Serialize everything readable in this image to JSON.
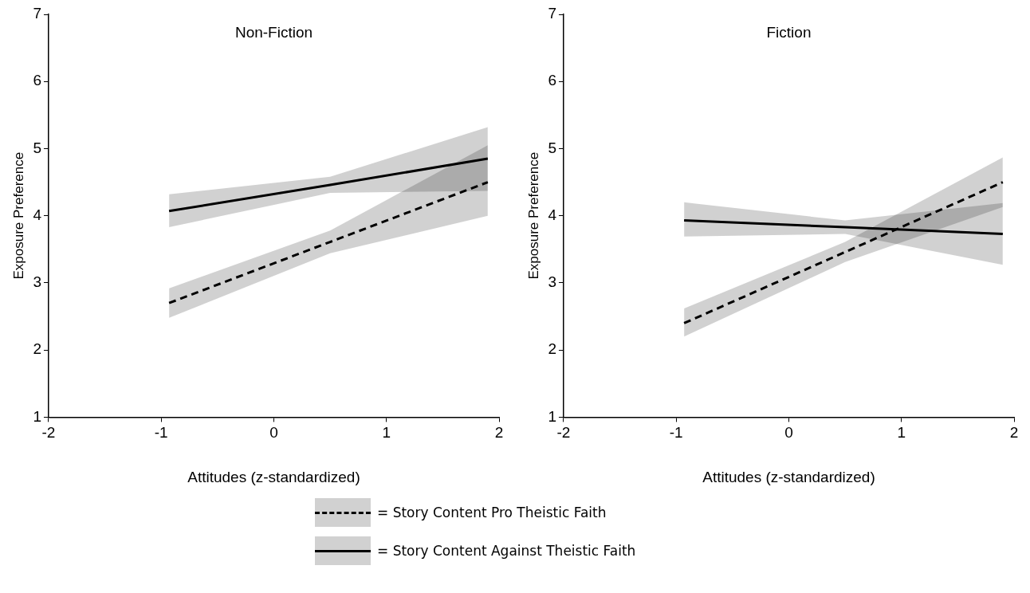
{
  "chart_data": [
    {
      "type": "line",
      "title": "Non-Fiction",
      "xlabel": "Attitudes (z-standardized)",
      "ylabel": "Exposure Preference",
      "xlim": [
        -2,
        2
      ],
      "xticks": [
        -2,
        -1,
        0,
        1,
        2
      ],
      "ylim": [
        1,
        7
      ],
      "yticks": [
        1,
        2,
        3,
        4,
        5,
        6,
        7
      ],
      "grid": false,
      "legend": "bottom",
      "marker": "none",
      "series": [
        {
          "name": "= Story Content Pro Theistic Faith",
          "color": "#000000",
          "line_style": "dashed",
          "x": [
            -0.93,
            0.5,
            1.9
          ],
          "values": [
            2.7,
            3.61,
            4.5
          ],
          "lower": [
            2.48,
            3.44,
            4.0
          ],
          "upper": [
            2.92,
            3.78,
            5.05
          ]
        },
        {
          "name": "= Story Content Against Theistic Faith",
          "color": "#000000",
          "line_style": "solid",
          "x": [
            -0.93,
            0.5,
            1.9
          ],
          "values": [
            4.07,
            4.46,
            4.85
          ],
          "lower": [
            3.83,
            4.34,
            4.37
          ],
          "upper": [
            4.32,
            4.58,
            5.32
          ]
        }
      ]
    },
    {
      "type": "line",
      "title": "Fiction",
      "xlabel": "Attitudes (z-standardized)",
      "ylabel": "Exposure Preference",
      "xlim": [
        -2,
        2
      ],
      "xticks": [
        -2,
        -1,
        0,
        1,
        2
      ],
      "ylim": [
        1,
        7
      ],
      "yticks": [
        1,
        2,
        3,
        4,
        5,
        6,
        7
      ],
      "grid": false,
      "marker": "none",
      "series": [
        {
          "color": "#000000",
          "line_style": "dashed",
          "x": [
            -0.93,
            0.5,
            1.9
          ],
          "values": [
            2.4,
            3.46,
            4.5
          ],
          "lower": [
            2.2,
            3.31,
            4.13
          ],
          "upper": [
            2.62,
            3.61,
            4.87
          ]
        },
        {
          "color": "#000000",
          "line_style": "solid",
          "x": [
            -0.93,
            0.5,
            1.9
          ],
          "values": [
            3.93,
            3.83,
            3.73
          ],
          "lower": [
            3.69,
            3.73,
            3.27
          ],
          "upper": [
            4.2,
            3.93,
            4.19
          ]
        }
      ]
    }
  ]
}
